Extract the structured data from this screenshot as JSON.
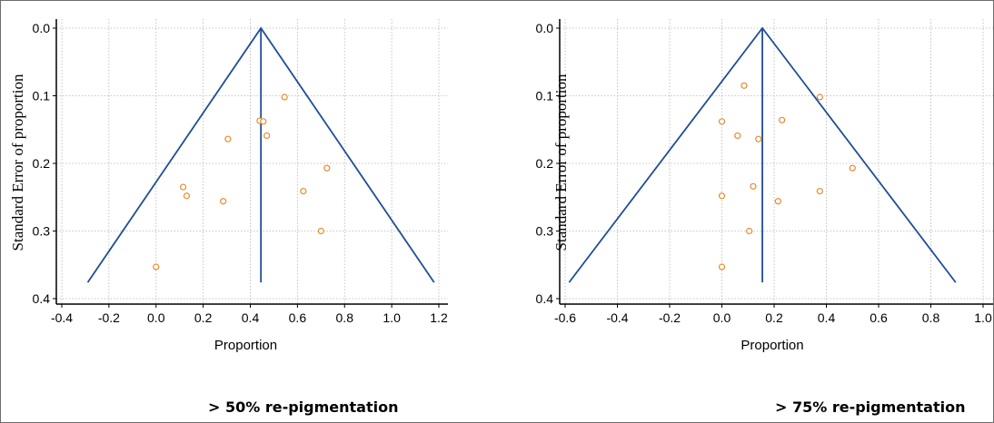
{
  "chart_data": [
    {
      "type": "scatter",
      "subtype": "funnel-plot",
      "caption": "> 50% re-pigmentation",
      "xlabel": "Proportion",
      "ylabel": "Standard Error  of proportion",
      "xlim": [
        -0.4,
        1.2
      ],
      "ylim": [
        0.0,
        0.4
      ],
      "y_inverted": true,
      "xticks": [
        "-0.4",
        "-0.2",
        "0.0",
        "0.2",
        "0.4",
        "0.6",
        "0.8",
        "1.0",
        "1.2"
      ],
      "yticks": [
        "0.0",
        "0.1",
        "0.2",
        "0.3",
        "0.4"
      ],
      "grid": true,
      "pooled_estimate": 0.445,
      "funnel_base_se": 0.376,
      "funnel_left_x": -0.29,
      "funnel_right_x": 1.18,
      "points": [
        {
          "x": 0.545,
          "y": 0.102
        },
        {
          "x": 0.44,
          "y": 0.137
        },
        {
          "x": 0.455,
          "y": 0.138
        },
        {
          "x": 0.47,
          "y": 0.159
        },
        {
          "x": 0.305,
          "y": 0.164
        },
        {
          "x": 0.725,
          "y": 0.207
        },
        {
          "x": 0.115,
          "y": 0.235
        },
        {
          "x": 0.625,
          "y": 0.241
        },
        {
          "x": 0.13,
          "y": 0.248
        },
        {
          "x": 0.285,
          "y": 0.256
        },
        {
          "x": 0.7,
          "y": 0.3
        },
        {
          "x": 0.0,
          "y": 0.353
        }
      ]
    },
    {
      "type": "scatter",
      "subtype": "funnel-plot",
      "caption": "> 75% re-pigmentation",
      "xlabel": "Proportion",
      "ylabel": "Standard Error  of proportion",
      "xlim": [
        -0.6,
        1.0
      ],
      "ylim": [
        0.0,
        0.4
      ],
      "y_inverted": true,
      "xticks": [
        "-0.6",
        "-0.4",
        "-0.2",
        "0.0",
        "0.2",
        "0.4",
        "0.6",
        "0.8",
        "1.0"
      ],
      "yticks": [
        "0.0",
        "0.1",
        "0.2",
        "0.3",
        "0.4"
      ],
      "grid": true,
      "pooled_estimate": 0.155,
      "funnel_base_se": 0.376,
      "funnel_left_x": -0.585,
      "funnel_right_x": 0.895,
      "points": [
        {
          "x": 0.085,
          "y": 0.085
        },
        {
          "x": 0.375,
          "y": 0.102
        },
        {
          "x": 0.0,
          "y": 0.138
        },
        {
          "x": 0.23,
          "y": 0.136
        },
        {
          "x": 0.06,
          "y": 0.159
        },
        {
          "x": 0.14,
          "y": 0.164
        },
        {
          "x": 0.5,
          "y": 0.207
        },
        {
          "x": 0.12,
          "y": 0.234
        },
        {
          "x": 0.375,
          "y": 0.241
        },
        {
          "x": 0.0,
          "y": 0.248
        },
        {
          "x": 0.215,
          "y": 0.256
        },
        {
          "x": 0.105,
          "y": 0.3
        },
        {
          "x": 0.0,
          "y": 0.353
        }
      ]
    }
  ],
  "colors": {
    "funnel": "#1f4e96",
    "points": "#e88a2b",
    "grid": "#b5b5b5",
    "axis": "#000000"
  }
}
